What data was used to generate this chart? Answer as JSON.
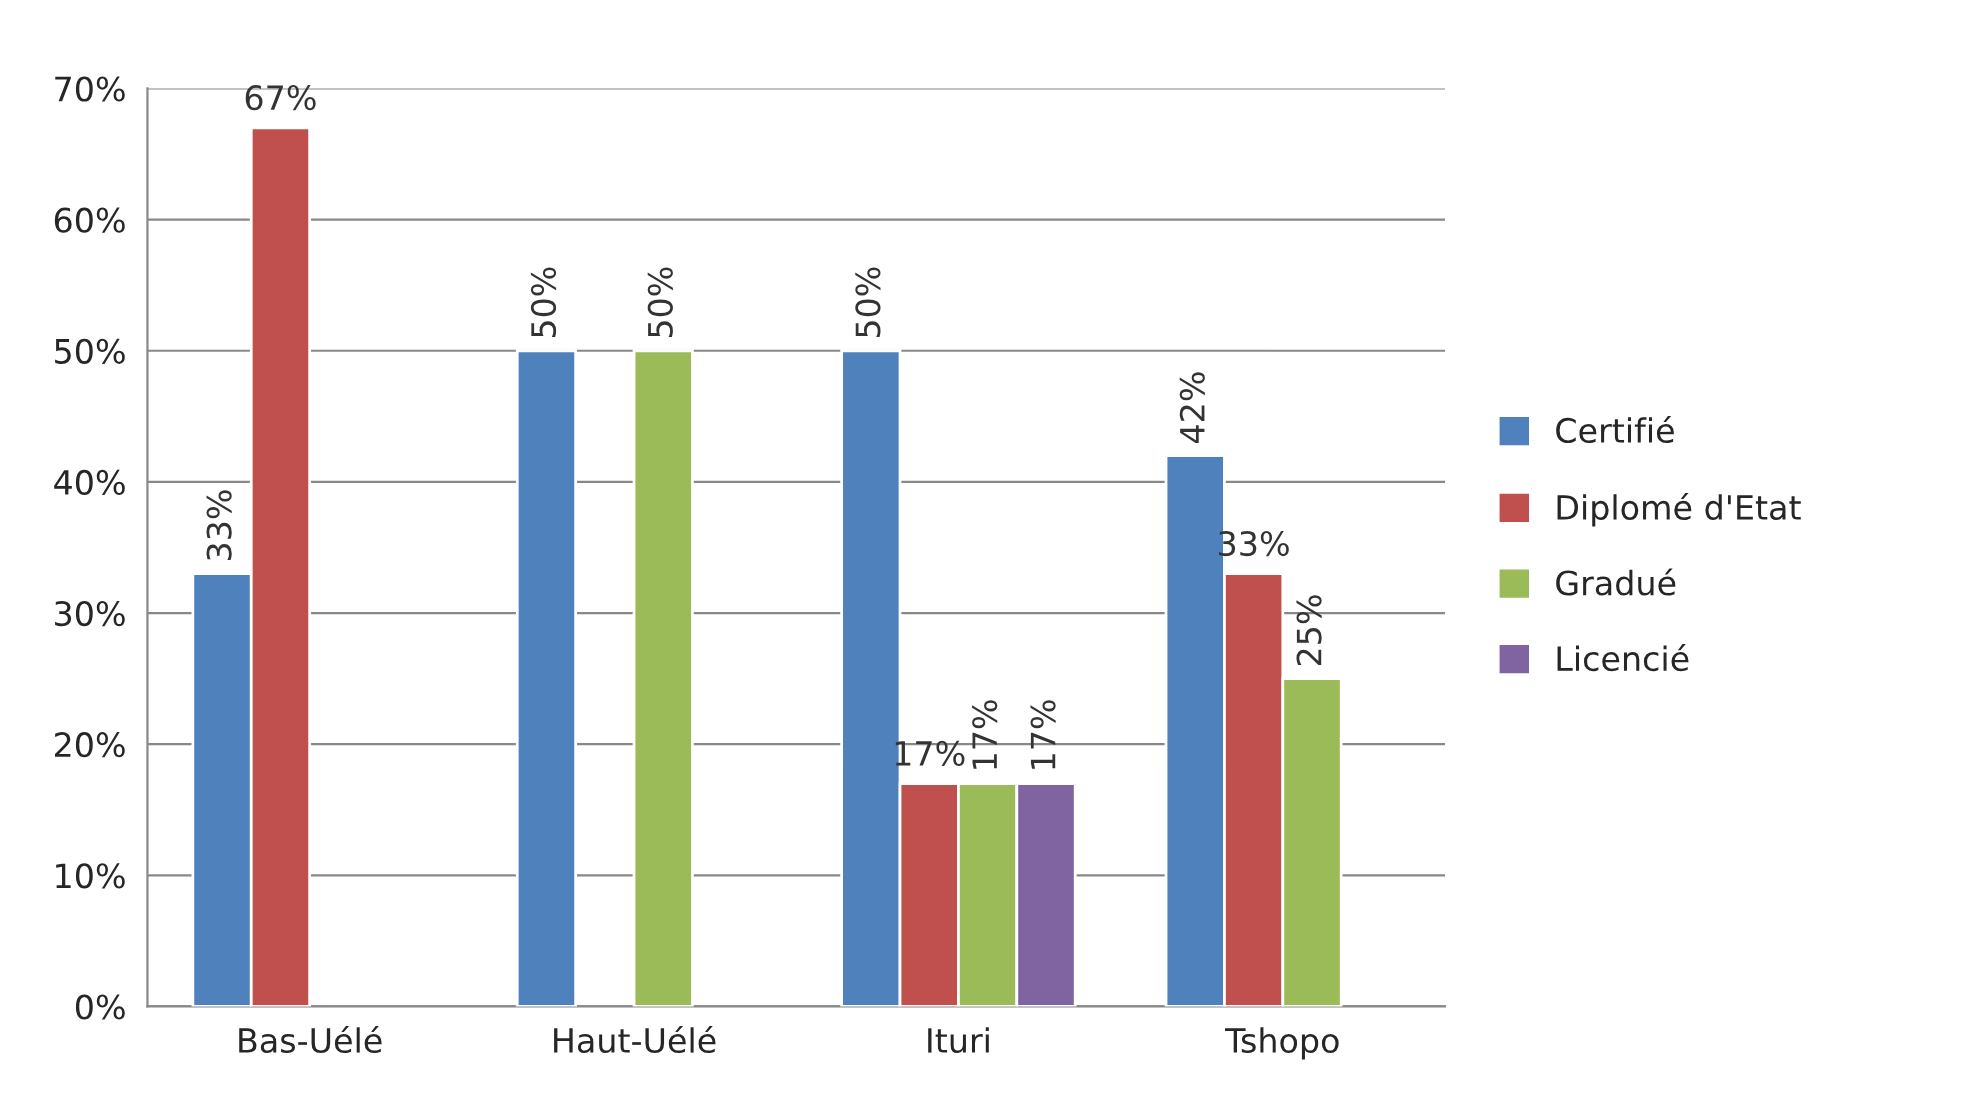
{
  "chart_data": {
    "type": "bar",
    "categories": [
      "Bas-Uélé",
      "Haut-Uélé",
      "Ituri",
      "Tshopo"
    ],
    "series": [
      {
        "name": "Certifié",
        "color": "#4f81bd",
        "values": [
          33,
          50,
          50,
          42
        ],
        "value_labels": [
          "33%",
          "50%",
          "50%",
          "42%"
        ]
      },
      {
        "name": "Diplomé d'Etat",
        "color": "#c0504d",
        "values": [
          67,
          null,
          17,
          33
        ],
        "value_labels": [
          "67%",
          null,
          "17%",
          "33%"
        ]
      },
      {
        "name": "Gradué",
        "color": "#9bbb59",
        "values": [
          null,
          50,
          17,
          25
        ],
        "value_labels": [
          null,
          "50%",
          "17%",
          "25%"
        ]
      },
      {
        "name": "Licencié",
        "color": "#8064a2",
        "values": [
          null,
          null,
          17,
          null
        ],
        "value_labels": [
          null,
          null,
          "17%",
          null
        ]
      }
    ],
    "ylim": [
      0,
      70
    ],
    "yticks": [
      {
        "value": 0,
        "label": "0%"
      },
      {
        "value": 10,
        "label": "10%"
      },
      {
        "value": 20,
        "label": "20%"
      },
      {
        "value": 30,
        "label": "30%"
      },
      {
        "value": 40,
        "label": "40%"
      },
      {
        "value": 50,
        "label": "50%"
      },
      {
        "value": 60,
        "label": "60%"
      },
      {
        "value": 70,
        "label": "70%"
      }
    ],
    "grid": "y",
    "legend": "right"
  }
}
